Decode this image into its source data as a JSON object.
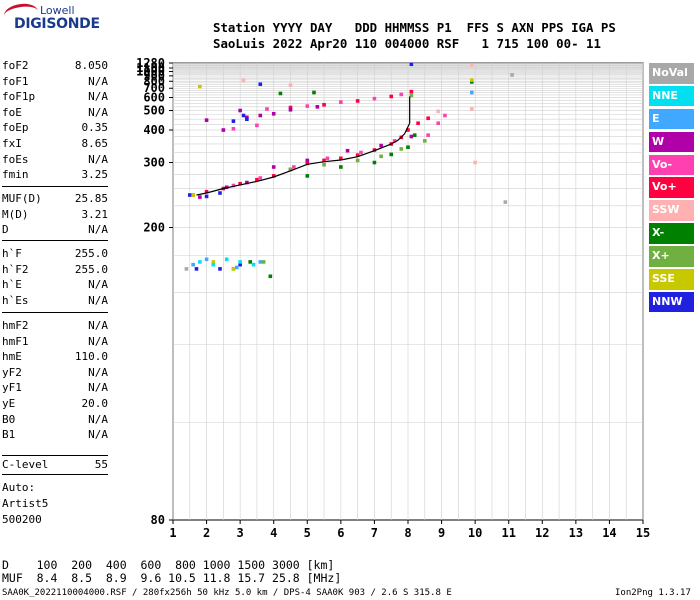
{
  "logo": {
    "line1": "Lowell",
    "line2": "DIGISONDE"
  },
  "header": {
    "row1": "Station YYYY DAY   DDD HHMMSS P1  FFS S AXN PPS IGA PS",
    "row2": "SaoLuis 2022 Apr20 110 004000 RSF   1 715 100 00- 11"
  },
  "params": {
    "group1": [
      {
        "name": "foF2",
        "value": "8.050"
      },
      {
        "name": "foF1",
        "value": "N/A"
      },
      {
        "name": "foF1p",
        "value": "N/A"
      },
      {
        "name": "foE",
        "value": "N/A"
      },
      {
        "name": "foEp",
        "value": "0.35"
      },
      {
        "name": "fxI",
        "value": "8.65"
      },
      {
        "name": "foEs",
        "value": "N/A"
      },
      {
        "name": "fmin",
        "value": "3.25"
      }
    ],
    "group2": [
      {
        "name": "MUF(D)",
        "value": "25.85"
      },
      {
        "name": "M(D)",
        "value": "3.21"
      },
      {
        "name": "D",
        "value": "N/A"
      }
    ],
    "group3": [
      {
        "name": "h`F",
        "value": "255.0"
      },
      {
        "name": "h`F2",
        "value": "255.0"
      },
      {
        "name": "h`E",
        "value": "N/A"
      },
      {
        "name": "h`Es",
        "value": "N/A"
      }
    ],
    "group4": [
      {
        "name": "hmF2",
        "value": "N/A"
      },
      {
        "name": "hmF1",
        "value": "N/A"
      },
      {
        "name": "hmE",
        "value": "110.0"
      },
      {
        "name": "yF2",
        "value": "N/A"
      },
      {
        "name": "yF1",
        "value": "N/A"
      },
      {
        "name": "yE",
        "value": "20.0"
      },
      {
        "name": "B0",
        "value": "N/A"
      },
      {
        "name": "B1",
        "value": "N/A"
      }
    ],
    "clevel": {
      "name": "C-level",
      "value": "55"
    },
    "auto": [
      "Auto:",
      "Artist5",
      "500200"
    ]
  },
  "legend": [
    {
      "label": "NoVal",
      "color": "#a8a8a8"
    },
    {
      "label": "NNE",
      "color": "#00e0f0"
    },
    {
      "label": "E",
      "color": "#40a8ff"
    },
    {
      "label": "W",
      "color": "#b000a8"
    },
    {
      "label": "Vo-",
      "color": "#ff40b0"
    },
    {
      "label": "Vo+",
      "color": "#ff0040"
    },
    {
      "label": "SSW",
      "color": "#ffb0b0"
    },
    {
      "label": "X-",
      "color": "#008000"
    },
    {
      "label": "X+",
      "color": "#70b040"
    },
    {
      "label": "SSE",
      "color": "#c8c800"
    },
    {
      "label": "NNW",
      "color": "#2020e0"
    }
  ],
  "footer": {
    "d_row": "D    100  200  400  600  800 1000 1500 3000 [km]",
    "muf_row": "MUF  8.4  8.5  8.9  9.6 10.5 11.8 15.7 25.8 [MHz]",
    "filename": "SAA0K_2022110004000.RSF / 280fx256h 50 kHz 5.0 km / DPS-4 SAA0K 903 / 2.6 S 315.8 E",
    "version": "Ion2Png 1.3.17"
  },
  "chart_data": {
    "type": "scatter",
    "x_ticks": [
      "1",
      "2",
      "3",
      "4",
      "5",
      "6",
      "7",
      "8",
      "9",
      "10",
      "11",
      "12",
      "13",
      "14",
      "15"
    ],
    "y_ticks": [
      "80",
      "200",
      "300",
      "400",
      "500",
      "600",
      "700",
      "800",
      "900",
      "1000",
      "1100",
      "1280"
    ],
    "xlim": [
      1,
      15
    ],
    "ylim": [
      80,
      1280
    ],
    "y_scale": "reciprocal",
    "grid": true,
    "series": [
      {
        "name": "Vo+",
        "color": "#ff0040",
        "points": [
          [
            1.6,
            240
          ],
          [
            2.0,
            245
          ],
          [
            2.5,
            250
          ],
          [
            3.0,
            258
          ],
          [
            3.5,
            265
          ],
          [
            4.0,
            272
          ],
          [
            4.5,
            285
          ],
          [
            5.0,
            298
          ],
          [
            5.5,
            305
          ],
          [
            6.0,
            310
          ],
          [
            6.5,
            318
          ],
          [
            7.0,
            332
          ],
          [
            7.5,
            350
          ],
          [
            7.8,
            372
          ],
          [
            8.0,
            400
          ],
          [
            8.3,
            430
          ],
          [
            8.6,
            455
          ],
          [
            4.5,
            520
          ],
          [
            5.5,
            540
          ],
          [
            6.5,
            570
          ],
          [
            7.5,
            610
          ],
          [
            8.1,
            660
          ]
        ]
      },
      {
        "name": "Vo-",
        "color": "#ff40b0",
        "points": [
          [
            2.8,
            255
          ],
          [
            3.6,
            268
          ],
          [
            4.6,
            290
          ],
          [
            5.6,
            310
          ],
          [
            6.6,
            325
          ],
          [
            7.6,
            360
          ],
          [
            8.6,
            380
          ],
          [
            8.9,
            430
          ],
          [
            9.1,
            470
          ],
          [
            3.8,
            510
          ],
          [
            5.0,
            530
          ],
          [
            6.0,
            560
          ],
          [
            7.0,
            590
          ],
          [
            7.8,
            630
          ],
          [
            2.8,
            405
          ],
          [
            3.5,
            420
          ]
        ]
      },
      {
        "name": "W",
        "color": "#b000a8",
        "points": [
          [
            1.8,
            237
          ],
          [
            2.6,
            252
          ],
          [
            3.2,
            260
          ],
          [
            4.0,
            290
          ],
          [
            5.0,
            305
          ],
          [
            6.2,
            330
          ],
          [
            7.2,
            345
          ],
          [
            8.1,
            375
          ],
          [
            2.5,
            400
          ],
          [
            3.2,
            460
          ],
          [
            3.6,
            470
          ],
          [
            3.0,
            500
          ],
          [
            4.0,
            480
          ],
          [
            2.0,
            445
          ],
          [
            4.5,
            505
          ],
          [
            5.3,
            525
          ]
        ]
      },
      {
        "name": "NNW",
        "color": "#2020e0",
        "points": [
          [
            1.5,
            240
          ],
          [
            2.0,
            238
          ],
          [
            2.4,
            243
          ],
          [
            1.7,
            165
          ],
          [
            2.4,
            165
          ],
          [
            3.0,
            168
          ],
          [
            2.8,
            440
          ],
          [
            3.2,
            450
          ],
          [
            3.1,
            470
          ],
          [
            3.6,
            755
          ],
          [
            8.1,
            1230
          ]
        ]
      },
      {
        "name": "X-",
        "color": "#008000",
        "points": [
          [
            5.0,
            272
          ],
          [
            6.0,
            290
          ],
          [
            7.0,
            300
          ],
          [
            7.5,
            320
          ],
          [
            8.0,
            340
          ],
          [
            8.2,
            380
          ],
          [
            3.3,
            170
          ],
          [
            3.9,
            160
          ],
          [
            4.2,
            640
          ],
          [
            5.2,
            650
          ],
          [
            9.9,
            790
          ]
        ]
      },
      {
        "name": "X+",
        "color": "#70b040",
        "points": [
          [
            4.5,
            285
          ],
          [
            5.5,
            295
          ],
          [
            6.5,
            305
          ],
          [
            7.2,
            315
          ],
          [
            7.8,
            335
          ],
          [
            8.5,
            360
          ],
          [
            2.8,
            165
          ],
          [
            3.7,
            170
          ],
          [
            8.1,
            620
          ]
        ]
      },
      {
        "name": "SSE",
        "color": "#c8c800",
        "points": [
          [
            1.6,
            240
          ],
          [
            2.2,
            170
          ],
          [
            2.8,
            165
          ],
          [
            9.9,
            820
          ],
          [
            1.8,
            720
          ]
        ]
      },
      {
        "name": "SSW",
        "color": "#ffb0b0",
        "points": [
          [
            3.1,
            815
          ],
          [
            4.5,
            740
          ],
          [
            8.9,
            495
          ],
          [
            9.9,
            510
          ],
          [
            10.0,
            300
          ],
          [
            9.9,
            1200
          ]
        ]
      },
      {
        "name": "NNE",
        "color": "#00e0f0",
        "points": [
          [
            1.8,
            170
          ],
          [
            2.2,
            168
          ],
          [
            2.6,
            172
          ],
          [
            3.0,
            170
          ],
          [
            3.4,
            168
          ]
        ]
      },
      {
        "name": "E",
        "color": "#40a8ff",
        "points": [
          [
            1.6,
            168
          ],
          [
            2.0,
            172
          ],
          [
            2.9,
            166
          ],
          [
            3.6,
            170
          ],
          [
            9.9,
            650
          ]
        ]
      },
      {
        "name": "NoVal",
        "color": "#a8a8a8",
        "points": [
          [
            1.4,
            165
          ],
          [
            10.9,
            230
          ],
          [
            11.1,
            920
          ]
        ]
      }
    ],
    "trace": {
      "color": "#000000",
      "points": [
        [
          1.7,
          240
        ],
        [
          2.0,
          243
        ],
        [
          2.5,
          250
        ],
        [
          3.0,
          256
        ],
        [
          3.5,
          262
        ],
        [
          4.0,
          270
        ],
        [
          4.5,
          282
        ],
        [
          5.0,
          296
        ],
        [
          5.5,
          302
        ],
        [
          6.0,
          306
        ],
        [
          6.5,
          314
        ],
        [
          7.0,
          330
        ],
        [
          7.5,
          350
        ],
        [
          7.7,
          362
        ],
        [
          7.9,
          385
        ],
        [
          8.05,
          430
        ]
      ],
      "spike": [
        [
          8.05,
          430
        ],
        [
          8.05,
          610
        ]
      ]
    }
  }
}
